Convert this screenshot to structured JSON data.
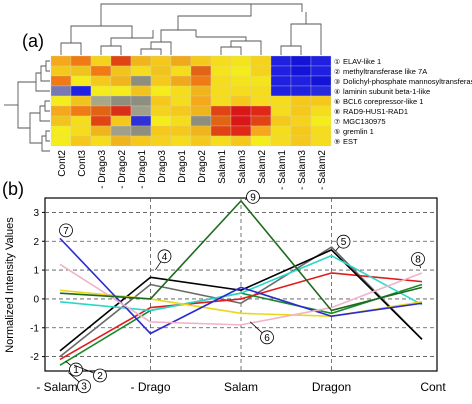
{
  "figure": {
    "panel_a_label": "(a)",
    "panel_b_label": "(b)"
  },
  "chart_data": [
    {
      "type": "heatmap",
      "panel": "(a)",
      "columns": [
        "Cont2",
        "Cont3",
        "- Drago3",
        "- Drago2",
        "- Drago1",
        "Drago3",
        "Drago1",
        "Drago2",
        "Salam1",
        "Salam3",
        "Salam2",
        "- Salam1",
        "- Salam3",
        "- Salam2"
      ],
      "rows": [
        {
          "number": "1",
          "name": "ELAV-like 1",
          "cells": [
            "#f5a81c",
            "#f07a14",
            "#f5d21c",
            "#e04414",
            "#f0b41c",
            "#f5c81c",
            "#f0a81c",
            "#f5c81c",
            "#f5dc1c",
            "#f5e41c",
            "#f5d21c",
            "#2020e0",
            "#1414d8",
            "#2020e0"
          ]
        },
        {
          "number": "2",
          "name": "methyltransferase like 7A",
          "cells": [
            "#f5c81c",
            "#f0c41c",
            "#f07a14",
            "#f0c41c",
            "#f5dc1c",
            "#f0c41c",
            "#f5dc1c",
            "#e06414",
            "#f5e41c",
            "#f5ec1c",
            "#f5d21c",
            "#2020e0",
            "#1414d8",
            "#2020e0"
          ]
        },
        {
          "number": "3",
          "name": "Dolichyl-phosphate mannosyltransferase",
          "cells": [
            "#f07a14",
            "#f5ec1c",
            "#f5c81c",
            "#f0b41c",
            "#8e8e7e",
            "#f5c81c",
            "#f0a81c",
            "#f07a14",
            "#f5dc1c",
            "#f5e41c",
            "#f5e41c",
            "#2020e0",
            "#2020e0",
            "#1414d8"
          ]
        },
        {
          "number": "4",
          "name": "laminin subunit beta-1-like",
          "cells": [
            "#7878b4",
            "#2020e0",
            "#f5ec1c",
            "#f5ec1c",
            "#f0c41c",
            "#f5ec1c",
            "#f5dc1c",
            "#f0b41c",
            "#f5dc1c",
            "#f5dc1c",
            "#f5dc1c",
            "#2020e0",
            "#2020e0",
            "#2828e0"
          ]
        },
        {
          "number": "6",
          "name": "BCL6 corepressor-like 1",
          "cells": [
            "#f5ec1c",
            "#f0c41c",
            "#a8a888",
            "#8e8e7e",
            "#8e8e7e",
            "#f5c81c",
            "#f5dc1c",
            "#f5a81c",
            "#f5dc1c",
            "#f5c81c",
            "#f5dc1c",
            "#f5dc1c",
            "#f5c81c",
            "#f5c81c"
          ]
        },
        {
          "number": "8",
          "name": "RAD9-HUS1-RAD1",
          "cells": [
            "#f5a81c",
            "#f07a14",
            "#e06414",
            "#d83018",
            "#a0a08a",
            "#f5d21c",
            "#f5c81c",
            "#f0b41c",
            "#e04414",
            "#d81818",
            "#e02818",
            "#f5dc1c",
            "#f5c81c",
            "#f5dc1c"
          ]
        },
        {
          "number": "7",
          "name": "MGC130975",
          "cells": [
            "#f0c41c",
            "#f5dc1c",
            "#e04414",
            "#f5c81c",
            "#3030d8",
            "#f5ec1c",
            "#f5dc1c",
            "#8e8e7e",
            "#e06414",
            "#d81818",
            "#e04414",
            "#f5c81c",
            "#f5d21c",
            "#f5ec1c"
          ]
        },
        {
          "number": "5",
          "name": "gremlin 1",
          "cells": [
            "#f5ec1c",
            "#f5dc1c",
            "#f0b41c",
            "#a0a08a",
            "#8e8e7e",
            "#f5c81c",
            "#f5c81c",
            "#f0b41c",
            "#e04414",
            "#e02818",
            "#f5a81c",
            "#f5dc1c",
            "#f5c81c",
            "#f5dc1c"
          ]
        },
        {
          "number": "9",
          "name": "EST",
          "cells": [
            "#f5ec1c",
            "#f5c81c",
            "#f5dc1c",
            "#f0b41c",
            "#f5c81c",
            "#f5d21c",
            "#f5dc1c",
            "#f5c81c",
            "#f5dc1c",
            "#f5c81c",
            "#f5ec1c",
            "#f5dc1c",
            "#f5c81c",
            "#f5dc1c"
          ]
        }
      ]
    },
    {
      "type": "line",
      "panel": "(b)",
      "title": "",
      "xlabel": "",
      "ylabel": "Normalized Intensity Values",
      "categories": [
        "- Salam",
        "- Drago",
        "Salam",
        "Dragon",
        "Cont"
      ],
      "ylim": [
        -2.5,
        3.5
      ],
      "yticks": [
        -2,
        -1,
        0,
        1,
        2,
        3
      ],
      "grid": true,
      "series": [
        {
          "label": "1",
          "color": "#6a6a6a",
          "values": [
            -2.0,
            0.5,
            -0.15,
            1.8,
            -1.4
          ]
        },
        {
          "label": "2",
          "color": "#e01c1c",
          "values": [
            -2.1,
            -0.3,
            0.0,
            0.9,
            0.6
          ]
        },
        {
          "label": "3",
          "color": "#1a8a2a",
          "values": [
            -2.3,
            -0.4,
            0.2,
            -0.5,
            0.5
          ]
        },
        {
          "label": "4",
          "color": "#000000",
          "values": [
            -1.8,
            0.75,
            0.3,
            1.7,
            -1.4
          ]
        },
        {
          "label": "5",
          "color": "#2ad8c8",
          "values": [
            -0.1,
            -0.4,
            0.2,
            1.5,
            -0.2
          ]
        },
        {
          "label": "6",
          "color": "#e8d81c",
          "values": [
            0.3,
            0.0,
            -0.5,
            -0.6,
            -0.1
          ]
        },
        {
          "label": "7",
          "color": "#2a2ad0",
          "values": [
            2.1,
            -1.2,
            0.4,
            -0.6,
            -0.15
          ]
        },
        {
          "label": "8",
          "color": "#f0b4c8",
          "values": [
            1.2,
            -0.8,
            -0.9,
            -0.3,
            0.9
          ]
        },
        {
          "label": "9",
          "color": "#1e6a1e",
          "values": [
            0.2,
            0.0,
            3.4,
            -0.4,
            0.4
          ]
        }
      ]
    }
  ]
}
